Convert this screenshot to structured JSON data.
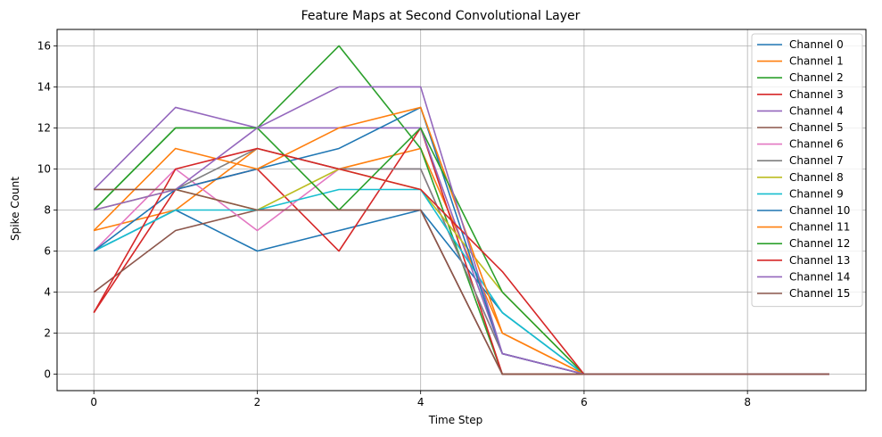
{
  "chart_data": {
    "type": "line",
    "title": "Feature Maps at Second Convolutional Layer",
    "xlabel": "Time Step",
    "ylabel": "Spike Count",
    "xlim": [
      -0.45,
      9.45
    ],
    "ylim": [
      -0.8,
      16.8
    ],
    "xticks": [
      0,
      2,
      4,
      6,
      8
    ],
    "yticks": [
      0,
      2,
      4,
      6,
      8,
      10,
      12,
      14,
      16
    ],
    "grid": true,
    "legend_position": "top-right",
    "x": [
      0,
      1,
      2,
      3,
      4,
      5,
      6,
      7,
      8,
      9
    ],
    "series": [
      {
        "name": "Channel 0",
        "color": "#1f77b4",
        "values": [
          6,
          8,
          6,
          7,
          8,
          3,
          0,
          0,
          0,
          0
        ]
      },
      {
        "name": "Channel 1",
        "color": "#ff7f0e",
        "values": [
          7,
          8,
          11,
          10,
          11,
          2,
          0,
          0,
          0,
          0
        ]
      },
      {
        "name": "Channel 2",
        "color": "#2ca02c",
        "values": [
          8,
          12,
          12,
          16,
          11,
          0,
          0,
          0,
          0,
          0
        ]
      },
      {
        "name": "Channel 3",
        "color": "#d62728",
        "values": [
          3,
          9,
          10,
          6,
          12,
          0,
          0,
          0,
          0,
          0
        ]
      },
      {
        "name": "Channel 4",
        "color": "#9467bd",
        "values": [
          9,
          13,
          12,
          12,
          12,
          1,
          0,
          0,
          0,
          0
        ]
      },
      {
        "name": "Channel 5",
        "color": "#8c564b",
        "values": [
          4,
          7,
          8,
          8,
          8,
          0,
          0,
          0,
          0,
          0
        ]
      },
      {
        "name": "Channel 6",
        "color": "#e377c2",
        "values": [
          6,
          10,
          7,
          10,
          10,
          1,
          0,
          0,
          0,
          0
        ]
      },
      {
        "name": "Channel 7",
        "color": "#7f7f7f",
        "values": [
          9,
          9,
          11,
          10,
          10,
          1,
          0,
          0,
          0,
          0
        ]
      },
      {
        "name": "Channel 8",
        "color": "#bcbd22",
        "values": [
          8,
          9,
          8,
          10,
          9,
          4,
          0,
          0,
          0,
          0
        ]
      },
      {
        "name": "Channel 9",
        "color": "#17becf",
        "values": [
          6,
          8,
          8,
          9,
          9,
          3,
          0,
          0,
          0,
          0
        ]
      },
      {
        "name": "Channel 10",
        "color": "#1f77b4",
        "values": [
          6,
          9,
          10,
          11,
          13,
          1,
          0,
          0,
          0,
          0
        ]
      },
      {
        "name": "Channel 11",
        "color": "#ff7f0e",
        "values": [
          7,
          11,
          10,
          12,
          13,
          2,
          0,
          0,
          0,
          0
        ]
      },
      {
        "name": "Channel 12",
        "color": "#2ca02c",
        "values": [
          8,
          12,
          12,
          8,
          12,
          4,
          0,
          0,
          0,
          0
        ]
      },
      {
        "name": "Channel 13",
        "color": "#d62728",
        "values": [
          3,
          10,
          11,
          10,
          9,
          5,
          0,
          0,
          0,
          0
        ]
      },
      {
        "name": "Channel 14",
        "color": "#9467bd",
        "values": [
          8,
          9,
          12,
          14,
          14,
          1,
          0,
          0,
          0,
          0
        ]
      },
      {
        "name": "Channel 15",
        "color": "#8c564b",
        "values": [
          9,
          9,
          8,
          8,
          8,
          0,
          0,
          0,
          0,
          0
        ]
      }
    ]
  }
}
